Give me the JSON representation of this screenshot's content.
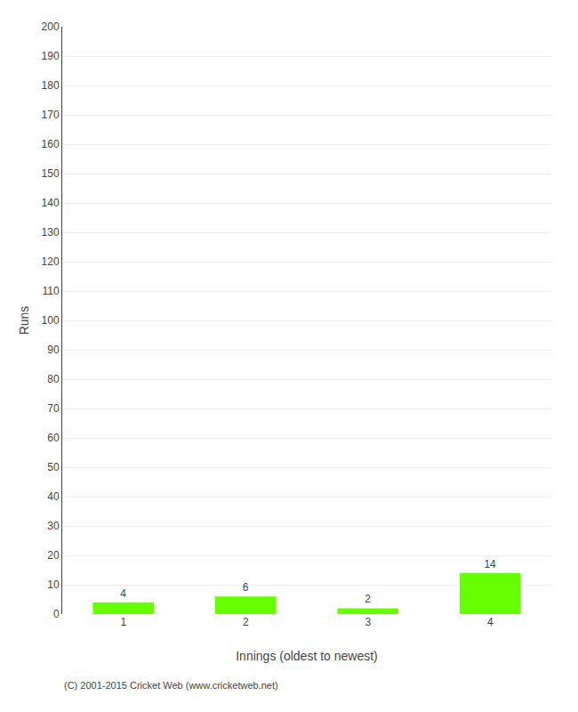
{
  "chart_data": {
    "type": "bar",
    "categories": [
      "1",
      "2",
      "3",
      "4"
    ],
    "values": [
      4,
      6,
      2,
      14
    ],
    "color": "#66ff00",
    "data_labels": true,
    "xlabel": "Innings (oldest to newest)",
    "ylabel": "Runs",
    "ylim": [
      0,
      200
    ],
    "yticks": [
      0,
      10,
      20,
      30,
      40,
      50,
      60,
      70,
      80,
      90,
      100,
      110,
      120,
      130,
      140,
      150,
      160,
      170,
      180,
      190,
      200
    ],
    "grid": true,
    "annotations": [
      "(C) 2001-2015 Cricket Web (www.cricketweb.net)"
    ]
  }
}
